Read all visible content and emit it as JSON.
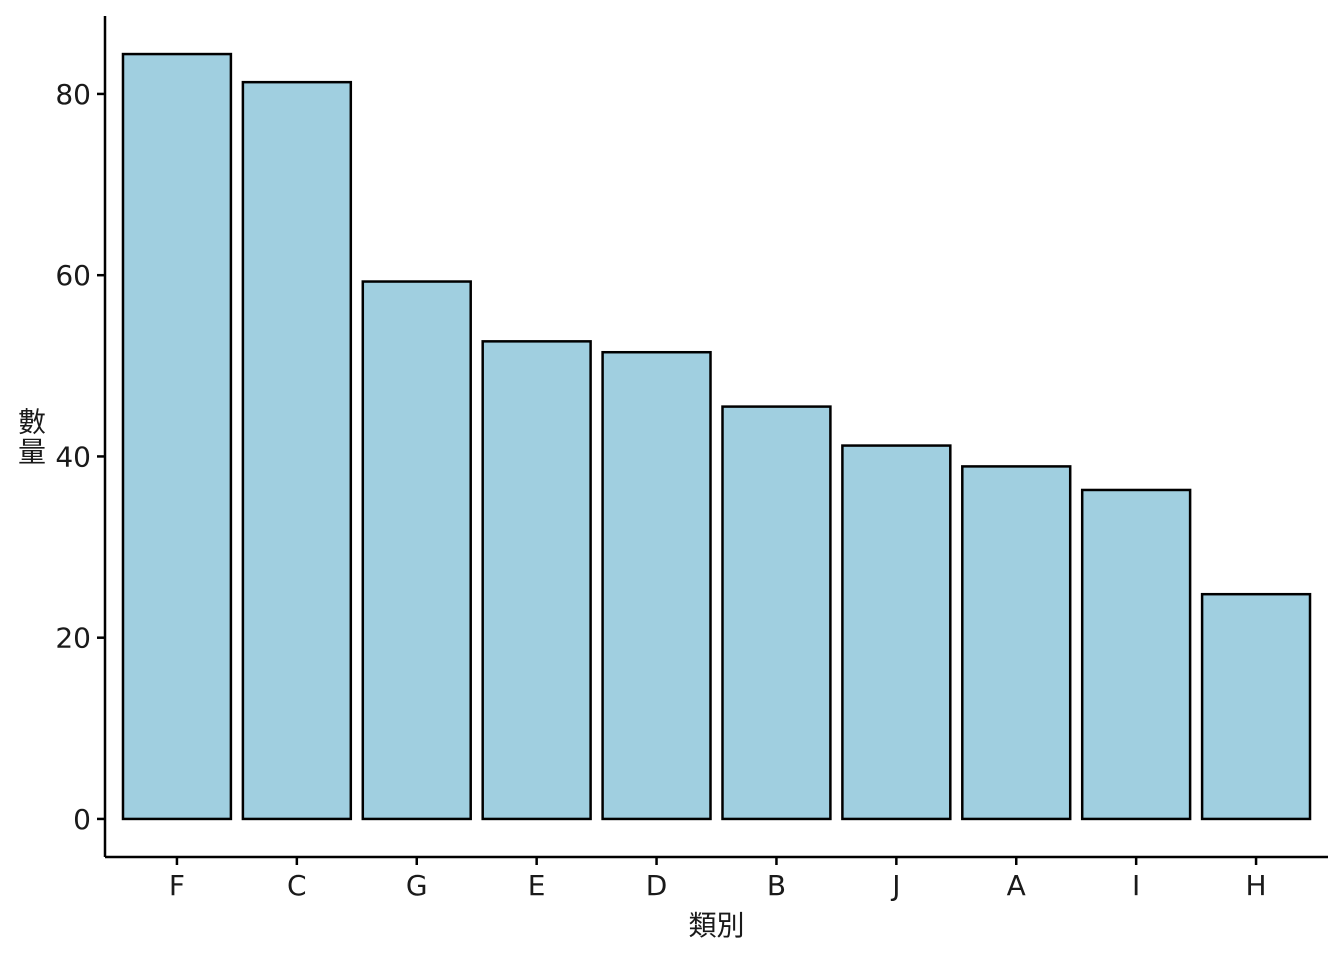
{
  "chart_data": {
    "type": "bar",
    "title": "",
    "xlabel": "類別",
    "ylabel": "數量",
    "categories": [
      "F",
      "C",
      "G",
      "E",
      "D",
      "B",
      "J",
      "A",
      "I",
      "H"
    ],
    "values": [
      84.4,
      81.3,
      59.3,
      52.7,
      51.5,
      45.5,
      41.2,
      38.9,
      36.3,
      24.8
    ],
    "ylim": [
      -4.2,
      88.6
    ],
    "yticks": [
      0,
      20,
      40,
      60,
      80
    ],
    "ytick_labels": [
      "0",
      "20",
      "40",
      "60",
      "80"
    ],
    "grid": false,
    "legend": "none",
    "bar_fill": "#a0cfe0",
    "bar_stroke": "#000000"
  }
}
